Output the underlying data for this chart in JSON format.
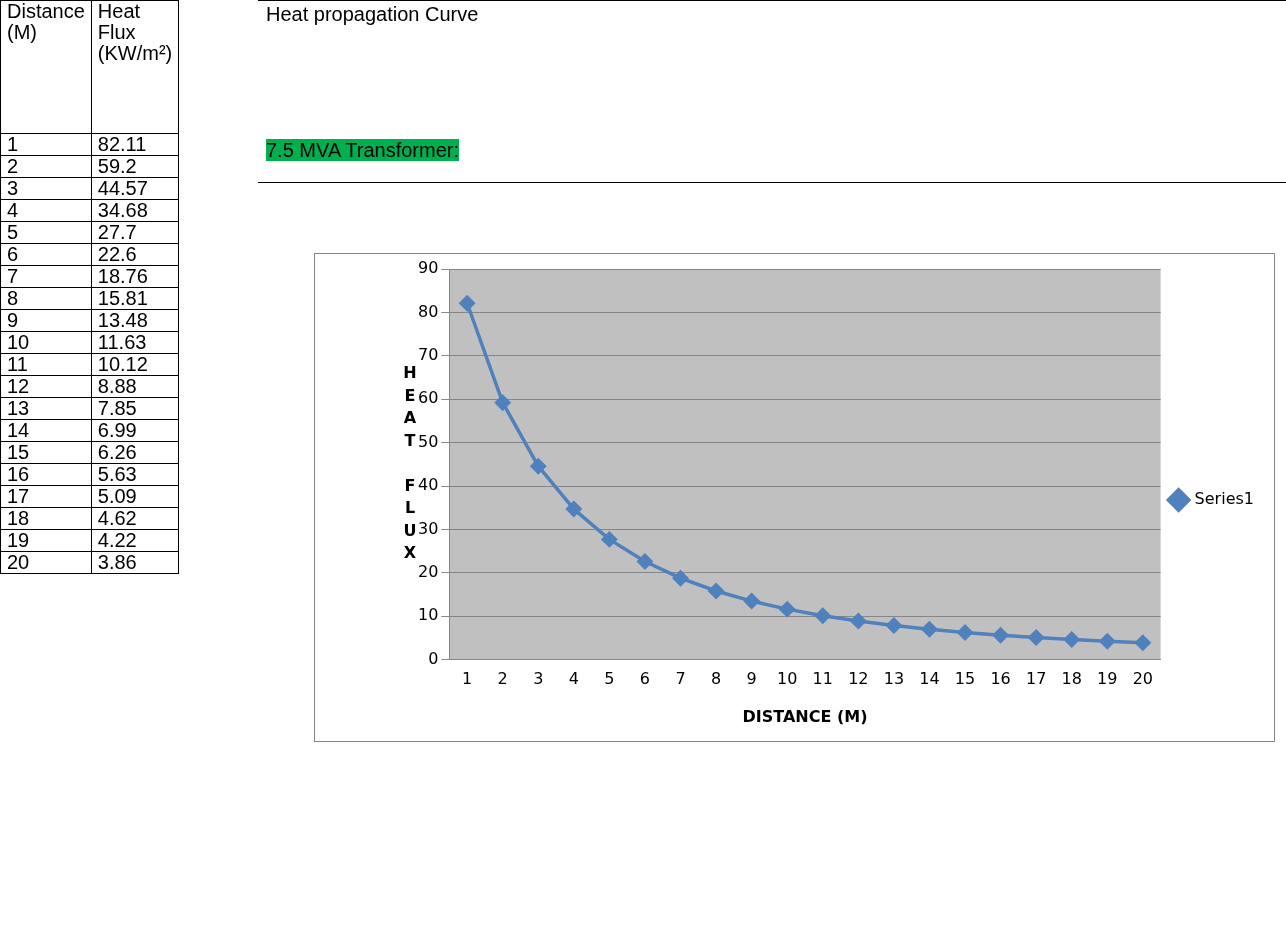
{
  "chart_data": {
    "type": "line",
    "title": "Heat propagation Curve",
    "xlabel": "DISTANCE (M)",
    "ylabel": "HEAT FLUX",
    "annotations": [
      "Distance (M)",
      "Heat Flux (KW/m²)",
      "7.5 MVA Transformer:"
    ],
    "categories": [
      "1",
      "2",
      "3",
      "4",
      "5",
      "6",
      "7",
      "8",
      "9",
      "10",
      "11",
      "12",
      "13",
      "14",
      "15",
      "16",
      "17",
      "18",
      "19",
      "20"
    ],
    "series": [
      {
        "name": "Series1",
        "color": "#4f81bd",
        "values": [
          82.11,
          59.2,
          44.57,
          34.68,
          27.7,
          22.6,
          18.76,
          15.81,
          13.48,
          11.63,
          10.12,
          8.88,
          7.85,
          6.99,
          6.26,
          5.63,
          5.09,
          4.62,
          4.22,
          3.86
        ]
      }
    ],
    "value_labels": [
      "82.11",
      "59.2",
      "44.57",
      "34.68",
      "27.7",
      "22.6",
      "18.76",
      "15.81",
      "13.48",
      "11.63",
      "10.12",
      "8.88",
      "7.85",
      "6.99",
      "6.26",
      "5.63",
      "5.09",
      "4.62",
      "4.22",
      "3.86"
    ],
    "ylim": [
      0,
      90
    ],
    "yticks": [
      0,
      10,
      20,
      30,
      40,
      50,
      60,
      70,
      80,
      90
    ],
    "grid": "y",
    "legend": "right",
    "marker": "diamond",
    "line_style": "solid"
  }
}
